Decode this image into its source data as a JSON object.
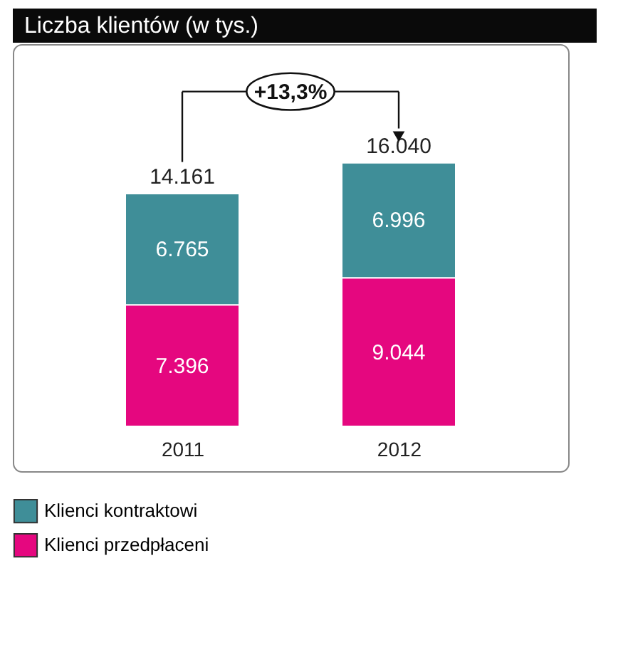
{
  "chart_data": {
    "type": "bar",
    "title": "Liczba klientów (w tys.)",
    "categories": [
      "2011",
      "2012"
    ],
    "stacked": true,
    "series": [
      {
        "name": "Klienci przedpłaceni",
        "color": "#e5077f",
        "values": [
          7396,
          9044
        ],
        "value_labels": [
          "7.396",
          "9.044"
        ]
      },
      {
        "name": "Klienci kontraktowi",
        "color": "#3f8e98",
        "values": [
          6765,
          6996
        ],
        "value_labels": [
          "6.765",
          "6.996"
        ]
      }
    ],
    "totals": [
      "14.161",
      "16.040"
    ],
    "annotations": [
      "+13,3%"
    ],
    "legend": "bottom",
    "grid": false
  }
}
